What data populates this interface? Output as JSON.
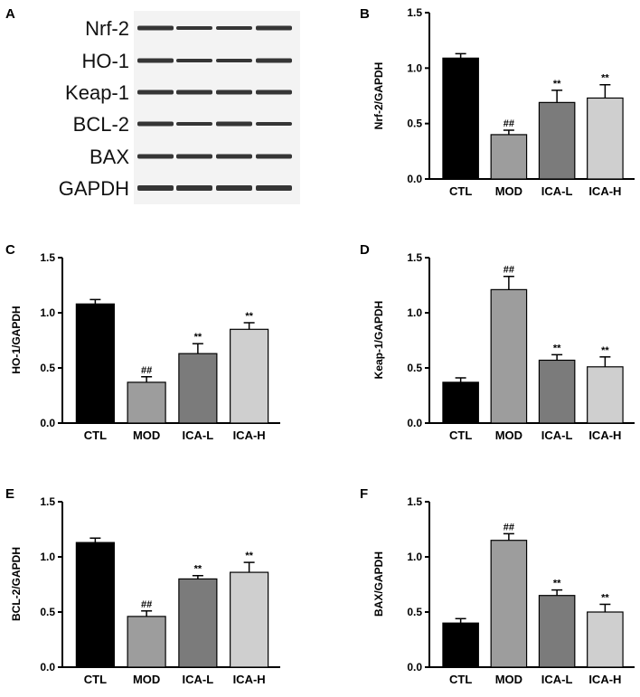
{
  "panel_a": {
    "letter": "A",
    "rows": [
      "Nrf-2",
      "HO-1",
      "Keap-1",
      "BCL-2",
      "BAX",
      "GAPDH"
    ],
    "lanes": 4
  },
  "chart_data": [
    {
      "type": "bar",
      "panel": "B",
      "ylabel": "Nrf-2/GAPDH",
      "ylim": [
        0,
        1.5
      ],
      "yticks": [
        "0.0",
        "0.5",
        "1.0",
        "1.5"
      ],
      "categories": [
        "CTL",
        "MOD",
        "ICA-L",
        "ICA-H"
      ],
      "values": [
        1.09,
        0.4,
        0.69,
        0.73
      ],
      "errors": [
        0.04,
        0.04,
        0.11,
        0.12
      ],
      "annotations": [
        "",
        "##",
        "**",
        "**"
      ]
    },
    {
      "type": "bar",
      "panel": "C",
      "ylabel": "HO-1/GAPDH",
      "ylim": [
        0,
        1.5
      ],
      "yticks": [
        "0.0",
        "0.5",
        "1.0",
        "1.5"
      ],
      "categories": [
        "CTL",
        "MOD",
        "ICA-L",
        "ICA-H"
      ],
      "values": [
        1.08,
        0.37,
        0.63,
        0.85
      ],
      "errors": [
        0.04,
        0.05,
        0.09,
        0.06
      ],
      "annotations": [
        "",
        "##",
        "**",
        "**"
      ]
    },
    {
      "type": "bar",
      "panel": "D",
      "ylabel": "Keap-1/GAPDH",
      "ylim": [
        0,
        1.5
      ],
      "yticks": [
        "0.0",
        "0.5",
        "1.0",
        "1.5"
      ],
      "categories": [
        "CTL",
        "MOD",
        "ICA-L",
        "ICA-H"
      ],
      "values": [
        0.37,
        1.21,
        0.57,
        0.51
      ],
      "errors": [
        0.04,
        0.12,
        0.05,
        0.09
      ],
      "annotations": [
        "",
        "##",
        "**",
        "**"
      ]
    },
    {
      "type": "bar",
      "panel": "E",
      "ylabel": "BCL-2/GAPDH",
      "ylim": [
        0,
        1.5
      ],
      "yticks": [
        "0.0",
        "0.5",
        "1.0",
        "1.5"
      ],
      "categories": [
        "CTL",
        "MOD",
        "ICA-L",
        "ICA-H"
      ],
      "values": [
        1.13,
        0.46,
        0.8,
        0.86
      ],
      "errors": [
        0.04,
        0.05,
        0.03,
        0.09
      ],
      "annotations": [
        "",
        "##",
        "**",
        "**"
      ]
    },
    {
      "type": "bar",
      "panel": "F",
      "ylabel": "BAX/GAPDH",
      "ylim": [
        0,
        1.5
      ],
      "yticks": [
        "0.0",
        "0.5",
        "1.0",
        "1.5"
      ],
      "categories": [
        "CTL",
        "MOD",
        "ICA-L",
        "ICA-H"
      ],
      "values": [
        0.4,
        1.15,
        0.65,
        0.5
      ],
      "errors": [
        0.04,
        0.06,
        0.05,
        0.07
      ],
      "annotations": [
        "",
        "##",
        "**",
        "**"
      ]
    }
  ],
  "colors": {
    "bars": [
      "#000000",
      "#9d9d9d",
      "#7b7b7b",
      "#cfcfcf"
    ],
    "axis": "#000000",
    "band": "#1a1a1a"
  }
}
